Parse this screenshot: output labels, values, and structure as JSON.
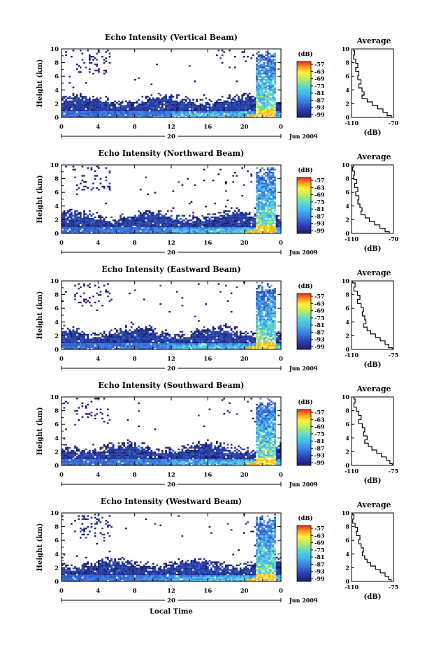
{
  "figure": {
    "x_axis_label": "Local Time",
    "date_label": "Jun 2009",
    "day_label": "20"
  },
  "chart_data": [
    {
      "type": "heatmap",
      "title": "Echo Intensity (Vertical Beam)",
      "ylabel": "Height (km)",
      "xlim": [
        0,
        24
      ],
      "ylim": [
        0,
        10
      ],
      "x_ticks": [
        "0",
        "4",
        "8",
        "12",
        "16",
        "20",
        "0"
      ],
      "y_ticks": [
        "0",
        "2",
        "4",
        "6",
        "8",
        "10"
      ],
      "colorbar": {
        "unit": "(dB)",
        "ticks": [
          "-57",
          "-63",
          "-69",
          "-75",
          "-81",
          "-87",
          "-93",
          "-99"
        ]
      },
      "profile": {
        "type": "line",
        "title": "Average",
        "xlabel": "(dB)",
        "x_ticks": [
          "-110",
          "-70"
        ],
        "y_ticks": [
          "0",
          "2",
          "4",
          "6",
          "8",
          "10"
        ],
        "xlim": [
          -110,
          -70
        ],
        "ylim": [
          0,
          10
        ],
        "x": [
          -108,
          -107,
          -108,
          -106,
          -104,
          -106,
          -103,
          -104,
          -101,
          -103,
          -100,
          -98,
          -100,
          -95,
          -90,
          -85,
          -80,
          -76,
          -72
        ],
        "y": [
          10,
          9.4,
          8.8,
          8.2,
          7.6,
          7.0,
          6.4,
          5.8,
          5.2,
          4.6,
          4.0,
          3.5,
          3.0,
          2.5,
          2.0,
          1.5,
          1.0,
          0.5,
          0.0
        ]
      }
    },
    {
      "type": "heatmap",
      "title": "Echo Intensity (Northward Beam)",
      "ylabel": "Height (km)",
      "xlim": [
        0,
        24
      ],
      "ylim": [
        0,
        10
      ],
      "x_ticks": [
        "0",
        "4",
        "8",
        "12",
        "16",
        "20",
        "0"
      ],
      "y_ticks": [
        "0",
        "2",
        "4",
        "6",
        "8",
        "10"
      ],
      "colorbar": {
        "unit": "(dB)",
        "ticks": [
          "-57",
          "-63",
          "-69",
          "-75",
          "-81",
          "-87",
          "-93",
          "-99"
        ]
      },
      "profile": {
        "type": "line",
        "title": "Average",
        "xlabel": "(dB)",
        "x_ticks": [
          "-110",
          "-70"
        ],
        "y_ticks": [
          "0",
          "2",
          "4",
          "6",
          "8",
          "10"
        ],
        "xlim": [
          -110,
          -70
        ],
        "ylim": [
          0,
          10
        ],
        "x": [
          -108,
          -109,
          -107,
          -108,
          -105,
          -107,
          -104,
          -106,
          -103,
          -104,
          -102,
          -100,
          -101,
          -97,
          -93,
          -88,
          -83,
          -78,
          -74
        ],
        "y": [
          10,
          9.4,
          8.8,
          8.2,
          7.6,
          7.0,
          6.4,
          5.8,
          5.2,
          4.6,
          4.0,
          3.5,
          3.0,
          2.5,
          2.0,
          1.5,
          1.0,
          0.5,
          0.0
        ]
      }
    },
    {
      "type": "heatmap",
      "title": "Echo Intensity (Eastward Beam)",
      "ylabel": "Height (km)",
      "xlim": [
        0,
        24
      ],
      "ylim": [
        0,
        10
      ],
      "x_ticks": [
        "0",
        "4",
        "8",
        "12",
        "16",
        "20",
        "0"
      ],
      "y_ticks": [
        "0",
        "2",
        "4",
        "6",
        "8",
        "10"
      ],
      "colorbar": {
        "unit": "(dB)",
        "ticks": [
          "-57",
          "-63",
          "-69",
          "-75",
          "-81",
          "-87",
          "-93",
          "-99"
        ]
      },
      "profile": {
        "type": "line",
        "title": "Average",
        "xlabel": "(dB)",
        "x_ticks": [
          "-110",
          "-75"
        ],
        "y_ticks": [
          "0",
          "2",
          "4",
          "6",
          "8",
          "10"
        ],
        "xlim": [
          -110,
          -75
        ],
        "ylim": [
          0,
          10
        ],
        "x": [
          -109,
          -107,
          -108,
          -105,
          -103,
          -105,
          -102,
          -100,
          -101,
          -99,
          -98,
          -100,
          -97,
          -94,
          -90,
          -86,
          -82,
          -79,
          -76
        ],
        "y": [
          10,
          9.4,
          8.8,
          8.2,
          7.6,
          7.0,
          6.4,
          5.8,
          5.2,
          4.6,
          4.0,
          3.5,
          3.0,
          2.5,
          2.0,
          1.5,
          1.0,
          0.5,
          0.0
        ]
      }
    },
    {
      "type": "heatmap",
      "title": "Echo Intensity (Southward Beam)",
      "ylabel": "Height (km)",
      "xlim": [
        0,
        24
      ],
      "ylim": [
        0,
        10
      ],
      "x_ticks": [
        "0",
        "4",
        "8",
        "12",
        "16",
        "20",
        "0"
      ],
      "y_ticks": [
        "0",
        "2",
        "4",
        "6",
        "8",
        "10"
      ],
      "colorbar": {
        "unit": "(dB)",
        "ticks": [
          "-57",
          "-63",
          "-69",
          "-75",
          "-81",
          "-87",
          "-93",
          "-99"
        ]
      },
      "profile": {
        "type": "line",
        "title": "Average",
        "xlabel": "(dB)",
        "x_ticks": [
          "-110",
          "-75"
        ],
        "y_ticks": [
          "0",
          "2",
          "4",
          "6",
          "8",
          "10"
        ],
        "xlim": [
          -110,
          -75
        ],
        "ylim": [
          0,
          10
        ],
        "x": [
          -108,
          -107,
          -108,
          -106,
          -104,
          -102,
          -104,
          -101,
          -99,
          -100,
          -97,
          -99,
          -96,
          -93,
          -89,
          -85,
          -81,
          -78,
          -76
        ],
        "y": [
          10,
          9.4,
          8.8,
          8.2,
          7.6,
          7.0,
          6.4,
          5.8,
          5.2,
          4.6,
          4.0,
          3.5,
          3.0,
          2.5,
          2.0,
          1.5,
          1.0,
          0.5,
          0.0
        ]
      }
    },
    {
      "type": "heatmap",
      "title": "Echo Intensity (Westward Beam)",
      "ylabel": "Height (km)",
      "xlim": [
        0,
        24
      ],
      "ylim": [
        0,
        10
      ],
      "x_ticks": [
        "0",
        "4",
        "8",
        "12",
        "16",
        "20",
        "0"
      ],
      "y_ticks": [
        "0",
        "2",
        "4",
        "6",
        "8",
        "10"
      ],
      "colorbar": {
        "unit": "(dB)",
        "ticks": [
          "-57",
          "-63",
          "-69",
          "-75",
          "-81",
          "-87",
          "-93",
          "-99"
        ]
      },
      "profile": {
        "type": "line",
        "title": "Average",
        "xlabel": "(dB)",
        "x_ticks": [
          "-110",
          "-75"
        ],
        "y_ticks": [
          "0",
          "2",
          "4",
          "6",
          "8",
          "10"
        ],
        "xlim": [
          -110,
          -75
        ],
        "ylim": [
          0,
          10
        ],
        "x": [
          -109,
          -108,
          -109,
          -107,
          -105,
          -106,
          -103,
          -104,
          -102,
          -100,
          -101,
          -99,
          -97,
          -94,
          -90,
          -86,
          -82,
          -79,
          -77
        ],
        "y": [
          10,
          9.4,
          8.8,
          8.2,
          7.6,
          7.0,
          6.4,
          5.8,
          5.2,
          4.6,
          4.0,
          3.5,
          3.0,
          2.5,
          2.0,
          1.5,
          1.0,
          0.5,
          0.0
        ]
      }
    }
  ]
}
